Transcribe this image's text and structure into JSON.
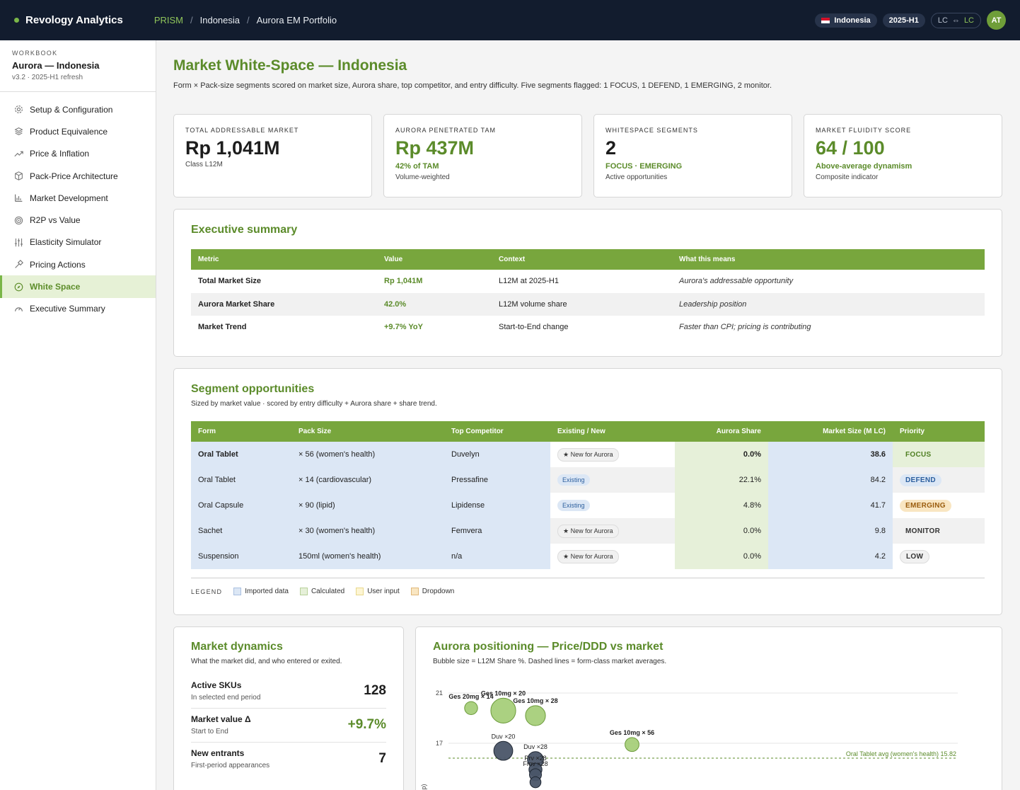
{
  "topbar": {
    "brand": "Revology Analytics",
    "breadcrumb": [
      "PRISM",
      "Indonesia",
      "Aurora EM Portfolio"
    ],
    "country": "Indonesia",
    "period": "2025-H1",
    "currency_from": "LC",
    "currency_to": "LC",
    "avatar": "AT"
  },
  "sidebar": {
    "kicker": "WORKBOOK",
    "title": "Aurora — Indonesia",
    "version": "v3.2 · 2025-H1 refresh",
    "items": [
      {
        "label": "Setup & Configuration",
        "icon": "gear-icon"
      },
      {
        "label": "Product Equivalence",
        "icon": "layers-icon"
      },
      {
        "label": "Price & Inflation",
        "icon": "trend-icon"
      },
      {
        "label": "Pack-Price Architecture",
        "icon": "box-icon"
      },
      {
        "label": "Market Development",
        "icon": "bar-chart-icon"
      },
      {
        "label": "R2P vs Value",
        "icon": "target-icon"
      },
      {
        "label": "Elasticity Simulator",
        "icon": "sliders-icon"
      },
      {
        "label": "Pricing Actions",
        "icon": "hammer-icon"
      },
      {
        "label": "White Space",
        "icon": "compass-icon",
        "active": true
      },
      {
        "label": "Executive Summary",
        "icon": "gauge-icon"
      }
    ]
  },
  "page": {
    "title": "Market White-Space — Indonesia",
    "subtitle": "Form × Pack-size segments scored on market size, Aurora share, top competitor, and entry difficulty. Five segments flagged: 1 FOCUS, 1 DEFEND, 1 EMERGING, 2 monitor."
  },
  "kpis": [
    {
      "label": "TOTAL ADDRESSABLE MARKET",
      "value": "Rp 1,041M",
      "sub1": "",
      "sub2": "Class L12M"
    },
    {
      "label": "AURORA PENETRATED TAM",
      "value": "Rp 437M",
      "sub1": "42% of TAM",
      "sub2": "Volume-weighted"
    },
    {
      "label": "WHITESPACE SEGMENTS",
      "value": "2",
      "sub1": "FOCUS · EMERGING",
      "sub2": "Active opportunities"
    },
    {
      "label": "MARKET FLUIDITY SCORE",
      "value": "64 / 100",
      "sub1": "Above-average dynamism",
      "sub2": "Composite indicator"
    }
  ],
  "exec": {
    "title": "Executive summary",
    "headers": [
      "Metric",
      "Value",
      "Context",
      "What this means"
    ],
    "rows": [
      [
        "Total Market Size",
        "Rp 1,041M",
        "L12M at 2025-H1",
        "Aurora's addressable opportunity"
      ],
      [
        "Aurora Market Share",
        "42.0%",
        "L12M volume share",
        "Leadership position"
      ],
      [
        "Market Trend",
        "+9.7% YoY",
        "Start-to-End change",
        "Faster than CPI; pricing is contributing"
      ]
    ]
  },
  "segments": {
    "title": "Segment opportunities",
    "subtitle": "Sized by market value · scored by entry difficulty + Aurora share + share trend.",
    "headers": [
      "Form",
      "Pack Size",
      "Top Competitor",
      "Existing / New",
      "Aurora Share",
      "Market Size (M LC)",
      "Priority"
    ],
    "rows": [
      [
        "Oral Tablet",
        "× 56 (women's health)",
        "Duvelyn",
        "★ New for Aurora",
        "0.0%",
        "38.6",
        "FOCUS"
      ],
      [
        "Oral Tablet",
        "× 14 (cardiovascular)",
        "Pressafine",
        "Existing",
        "22.1%",
        "84.2",
        "DEFEND"
      ],
      [
        "Oral Capsule",
        "× 90 (lipid)",
        "Lipidense",
        "Existing",
        "4.8%",
        "41.7",
        "EMERGING"
      ],
      [
        "Sachet",
        "× 30 (women's health)",
        "Femvera",
        "★ New for Aurora",
        "0.0%",
        "9.8",
        "MONITOR"
      ],
      [
        "Suspension",
        "150ml (women's health)",
        "n/a",
        "★ New for Aurora",
        "0.0%",
        "4.2",
        "LOW"
      ]
    ],
    "legend_key": "LEGEND",
    "legend": [
      "Imported data",
      "Calculated",
      "User input",
      "Dropdown"
    ],
    "legend_colors": [
      "#dce7f5",
      "#e6f0d9",
      "#fdf5d3",
      "#f9e6c2"
    ]
  },
  "dynamics": {
    "title": "Market dynamics",
    "subtitle": "What the market did, and who entered or exited.",
    "rows": [
      {
        "label": "Active SKUs",
        "sub": "In selected end period",
        "value": "128"
      },
      {
        "label": "Market value Δ",
        "sub": "Start to End",
        "value": "+9.7%"
      },
      {
        "label": "New entrants",
        "sub": "First-period appearances",
        "value": "7"
      }
    ]
  },
  "positioning": {
    "title": "Aurora positioning — Price/DDD vs market",
    "subtitle": "Bubble size = L12M Share %. Dashed lines = form-class market averages.",
    "avg_label": "Oral Tablet avg (women's health) 15.82",
    "ylabel": "D (Rp)",
    "colors": {
      "aurora": "#9cc96b",
      "aurora_stroke": "#6b9a3a",
      "comp": "#4a5568",
      "comp_stroke": "#1f2733",
      "avg": "#5b8b2a"
    }
  },
  "chart_data": {
    "type": "scatter",
    "title": "Aurora positioning — Price/DDD vs market",
    "ylabel": "D (Rp)",
    "yticks": [
      21,
      17
    ],
    "avg_line": {
      "label": "Oral Tablet avg (women's health) 15.82",
      "y": 15.82
    },
    "points": [
      {
        "label": "Ges 20mg × 14",
        "x": 1,
        "y": 19.8,
        "size": 1.2,
        "group": "aurora"
      },
      {
        "label": "Ges 10mg × 20",
        "x": 2,
        "y": 19.6,
        "size": 3.6,
        "group": "aurora"
      },
      {
        "label": "Ges 10mg × 28",
        "x": 3,
        "y": 19.2,
        "size": 2.6,
        "group": "aurora"
      },
      {
        "label": "Ges 10mg × 56",
        "x": 6,
        "y": 16.9,
        "size": 1.4,
        "group": "aurora"
      },
      {
        "label": "Duv ×20",
        "x": 2,
        "y": 16.4,
        "size": 2.4,
        "group": "competitor"
      },
      {
        "label": "Duv ×28",
        "x": 3,
        "y": 15.7,
        "size": 1.8,
        "group": "competitor"
      },
      {
        "label": "Prv ×28",
        "x": 3,
        "y": 14.9,
        "size": 1.2,
        "group": "competitor"
      },
      {
        "label": "Fmv ×28",
        "x": 3,
        "y": 14.5,
        "size": 1.0,
        "group": "competitor"
      },
      {
        "label": "",
        "x": 3,
        "y": 13.9,
        "size": 0.8,
        "group": "competitor"
      }
    ]
  }
}
